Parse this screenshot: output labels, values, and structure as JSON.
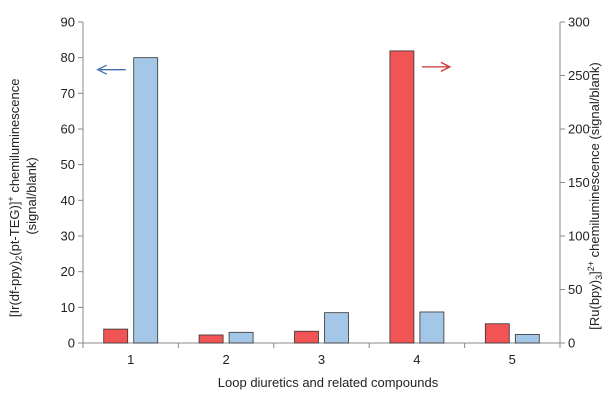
{
  "chart_data": {
    "type": "bar",
    "xlabel": "Loop diuretics and related compounds",
    "ylabel_left": {
      "line1": [
        "[Ir(df-ppy)",
        "2",
        "(pt-TEG)]",
        "+",
        " chemiluminescence"
      ],
      "line2": "(signal/blank)"
    },
    "ylabel_right": [
      "[Ru(bpy)",
      "3",
      "]",
      "2+",
      " chemiluminescence (signal/blank)"
    ],
    "categories": [
      "1",
      "2",
      "3",
      "4",
      "5"
    ],
    "y_left": {
      "min": 0,
      "max": 90,
      "ticks": [
        0,
        10,
        20,
        30,
        40,
        50,
        60,
        70,
        80,
        90
      ]
    },
    "y_right": {
      "min": 0,
      "max": 300,
      "ticks": [
        0,
        50,
        100,
        150,
        200,
        250,
        300
      ]
    },
    "grid": false,
    "series": [
      {
        "axis": "right",
        "color": "#f05454",
        "values": [
          13,
          7.5,
          11,
          273,
          18
        ]
      },
      {
        "axis": "left",
        "color": "#a4c6e7",
        "values": [
          80,
          3.0,
          8.5,
          8.7,
          2.4
        ]
      }
    ],
    "annotations": [
      {
        "type": "arrow",
        "direction": "left",
        "axis": "left",
        "color": "#3f6fa8"
      },
      {
        "type": "arrow",
        "direction": "right",
        "axis": "right",
        "color": "#cc3333"
      }
    ]
  }
}
